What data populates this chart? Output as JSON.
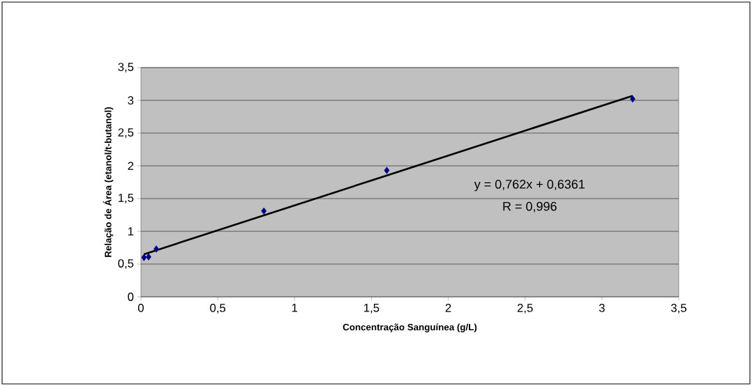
{
  "chart_data": {
    "type": "scatter",
    "xlabel": "Concentração Sanguínea (g/L)",
    "ylabel": "Relação de Área (etanol/t-butanol)",
    "series": [
      {
        "color": "#000080",
        "marker": "diamond",
        "x": [
          0.02,
          0.05,
          0.1,
          0.8,
          1.6,
          3.2
        ],
        "values": [
          0.6,
          0.61,
          0.73,
          1.31,
          1.93,
          3.02
        ]
      },
      {
        "type": "line",
        "color": "#000000",
        "marker": "none",
        "line_style": "solid",
        "x": [
          0.02,
          3.2
        ],
        "values": [
          0.65,
          3.07
        ]
      }
    ],
    "annotations": [
      "y = 0,762x + 0,6361",
      "R = 0,996"
    ],
    "xlim": [
      0,
      3.5
    ],
    "ylim": [
      0,
      3.5
    ],
    "xticks": [
      0,
      {
        "value": 0.5,
        "label": "0,5"
      },
      1,
      {
        "value": 1.5,
        "label": "1,5"
      },
      2,
      {
        "value": 2.5,
        "label": "2,5"
      },
      3,
      {
        "value": 3.5,
        "label": "3,5"
      }
    ],
    "yticks": [
      0,
      {
        "value": 0.5,
        "label": "0,5"
      },
      1,
      {
        "value": 1.5,
        "label": "1,5"
      },
      2,
      {
        "value": 2.5,
        "label": "2,5"
      },
      3,
      {
        "value": 3.5,
        "label": "3,5"
      }
    ],
    "grid": "y"
  }
}
